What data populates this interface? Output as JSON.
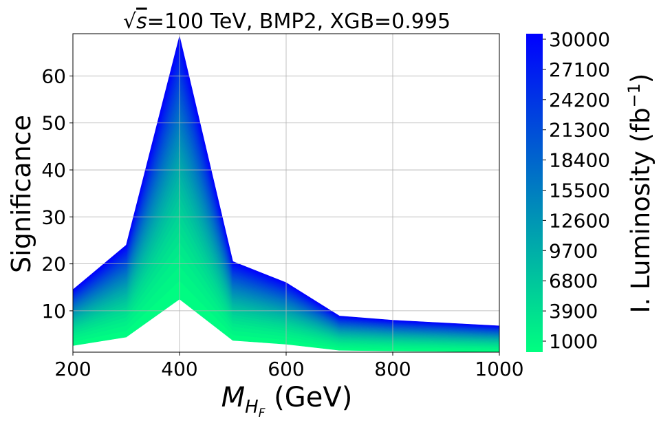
{
  "chart_data": {
    "type": "area",
    "title_parts": {
      "sqrt_symbol": "√",
      "s_var": "s",
      "rest": "=100 TeV, BMP2, XGB=0.995"
    },
    "xlabel_parts": {
      "m": "M",
      "h": "H",
      "f": "F",
      "unit": " (GeV)"
    },
    "ylabel": "Significance",
    "colorbar_label_parts": {
      "main": "I. Luminosity (fb",
      "sup": "−1",
      "close": ")"
    },
    "x": [
      200,
      300,
      400,
      500,
      600,
      700,
      800,
      900,
      1000
    ],
    "significance_at_1000": [
      2.6,
      4.4,
      12.5,
      3.7,
      2.9,
      1.6,
      1.45,
      1.35,
      1.25
    ],
    "significance_at_30000": [
      14.5,
      24.0,
      68.5,
      20.5,
      16.0,
      8.9,
      8.0,
      7.4,
      6.8
    ],
    "luminosity_range": [
      1000,
      30000
    ],
    "xlim": [
      200,
      1000
    ],
    "ylim": [
      1.2,
      69
    ],
    "xticks": [
      "200",
      "400",
      "600",
      "800",
      "1000"
    ],
    "xtick_values": [
      200,
      400,
      600,
      800,
      1000
    ],
    "yticks": [
      "10",
      "20",
      "30",
      "40",
      "50",
      "60"
    ],
    "ytick_values": [
      10,
      20,
      30,
      40,
      50,
      60
    ],
    "colorbar_ticks": [
      "1000",
      "3900",
      "6800",
      "9700",
      "12600",
      "15500",
      "18400",
      "21300",
      "24200",
      "27100",
      "30000"
    ],
    "colorbar_tick_values": [
      1000,
      3900,
      6800,
      9700,
      12600,
      15500,
      18400,
      21300,
      24200,
      27100,
      30000
    ],
    "grid": true,
    "colormap": {
      "low": "#00ff80",
      "high": "#0000ff"
    }
  }
}
